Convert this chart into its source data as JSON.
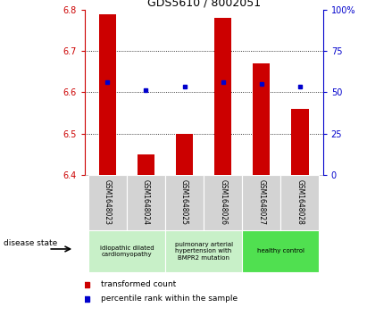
{
  "title": "GDS5610 / 8002051",
  "samples": [
    "GSM1648023",
    "GSM1648024",
    "GSM1648025",
    "GSM1648026",
    "GSM1648027",
    "GSM1648028"
  ],
  "red_values": [
    6.79,
    6.45,
    6.5,
    6.78,
    6.67,
    6.56
  ],
  "blue_values": [
    6.625,
    6.605,
    6.615,
    6.625,
    6.62,
    6.615
  ],
  "red_baseline": 6.4,
  "ylim": [
    6.4,
    6.8
  ],
  "yticks": [
    6.4,
    6.5,
    6.6,
    6.7,
    6.8
  ],
  "right_yticks": [
    0,
    25,
    50,
    75,
    100
  ],
  "right_ylabels": [
    "0",
    "25",
    "50",
    "75",
    "100%"
  ],
  "bar_color": "#cc0000",
  "dot_color": "#0000cc",
  "tick_label_color_left": "#cc0000",
  "tick_label_color_right": "#0000cc",
  "bar_width": 0.45,
  "legend_red_label": "transformed count",
  "legend_blue_label": "percentile rank within the sample",
  "disease_state_label": "disease state",
  "group_colors": [
    "#c8f0c8",
    "#c8f0c8",
    "#50e050"
  ],
  "group_ranges": [
    [
      0,
      2
    ],
    [
      2,
      4
    ],
    [
      4,
      6
    ]
  ],
  "group_labels": [
    "idiopathic dilated\ncardiomyopathy",
    "pulmonary arterial\nhypertension with\nBMPR2 mutation",
    "healthy control"
  ],
  "sample_bg_color": "#d3d3d3",
  "title_fontsize": 9,
  "tick_fontsize": 7,
  "label_fontsize": 6,
  "legend_fontsize": 6.5
}
